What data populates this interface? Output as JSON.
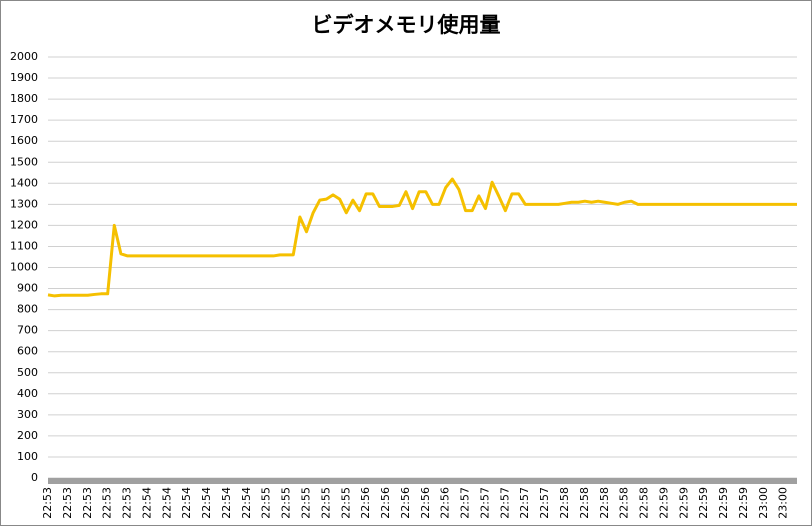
{
  "chart_data": {
    "type": "line",
    "title": "ビデオメモリ使用量",
    "categories": [
      "22:53",
      null,
      null,
      "22:53",
      null,
      null,
      "22:53",
      null,
      null,
      "22:53",
      null,
      null,
      "22:53",
      null,
      null,
      "22:54",
      null,
      null,
      "22:54",
      null,
      null,
      "22:54",
      null,
      null,
      "22:54",
      null,
      null,
      "22:54",
      null,
      null,
      "22:54",
      null,
      null,
      "22:55",
      null,
      null,
      "22:55",
      null,
      null,
      "22:55",
      null,
      null,
      "22:55",
      null,
      null,
      "22:55",
      null,
      null,
      "22:56",
      null,
      null,
      "22:56",
      null,
      null,
      "22:56",
      null,
      null,
      "22:56",
      null,
      null,
      "22:56",
      null,
      null,
      "22:57",
      null,
      null,
      "22:57",
      null,
      null,
      "22:57",
      null,
      null,
      "22:57",
      null,
      null,
      "22:57",
      null,
      null,
      "22:58",
      null,
      null,
      "22:58",
      null,
      null,
      "22:58",
      null,
      null,
      "22:58",
      null,
      null,
      "22:58",
      null,
      null,
      "22:59",
      null,
      null,
      "22:59",
      null,
      null,
      "22:59",
      null,
      null,
      "22:59",
      null,
      null,
      "22:59",
      null,
      null,
      "23:00",
      null,
      null,
      "23:00",
      null,
      null
    ],
    "series": [
      {
        "name": "ビデオメモリ使用量",
        "color": "#f5c000",
        "values": [
          870,
          865,
          868,
          868,
          868,
          868,
          868,
          872,
          875,
          875,
          1200,
          1065,
          1055,
          1055,
          1055,
          1055,
          1055,
          1055,
          1055,
          1055,
          1055,
          1055,
          1055,
          1055,
          1055,
          1055,
          1055,
          1055,
          1055,
          1055,
          1055,
          1055,
          1055,
          1055,
          1055,
          1060,
          1060,
          1060,
          1240,
          1170,
          1260,
          1320,
          1325,
          1345,
          1325,
          1260,
          1320,
          1270,
          1350,
          1350,
          1290,
          1290,
          1290,
          1295,
          1360,
          1280,
          1360,
          1360,
          1300,
          1300,
          1380,
          1420,
          1370,
          1270,
          1270,
          1340,
          1280,
          1405,
          1340,
          1270,
          1350,
          1350,
          1300,
          1300,
          1300,
          1300,
          1300,
          1300,
          1305,
          1310,
          1310,
          1315,
          1310,
          1315,
          1310,
          1305,
          1300,
          1310,
          1315,
          1300,
          1300,
          1300,
          1300,
          1300,
          1300,
          1300,
          1300,
          1300,
          1300,
          1300,
          1300,
          1300,
          1300,
          1300,
          1300,
          1300,
          1300,
          1300,
          1300,
          1300,
          1300,
          1300,
          1300,
          1300
        ]
      }
    ],
    "ylim": [
      0,
      2000
    ],
    "yticks": [
      0,
      100,
      200,
      300,
      400,
      500,
      600,
      700,
      800,
      900,
      1000,
      1100,
      1200,
      1300,
      1400,
      1500,
      1600,
      1700,
      1800,
      1900,
      2000
    ],
    "grid": true
  }
}
